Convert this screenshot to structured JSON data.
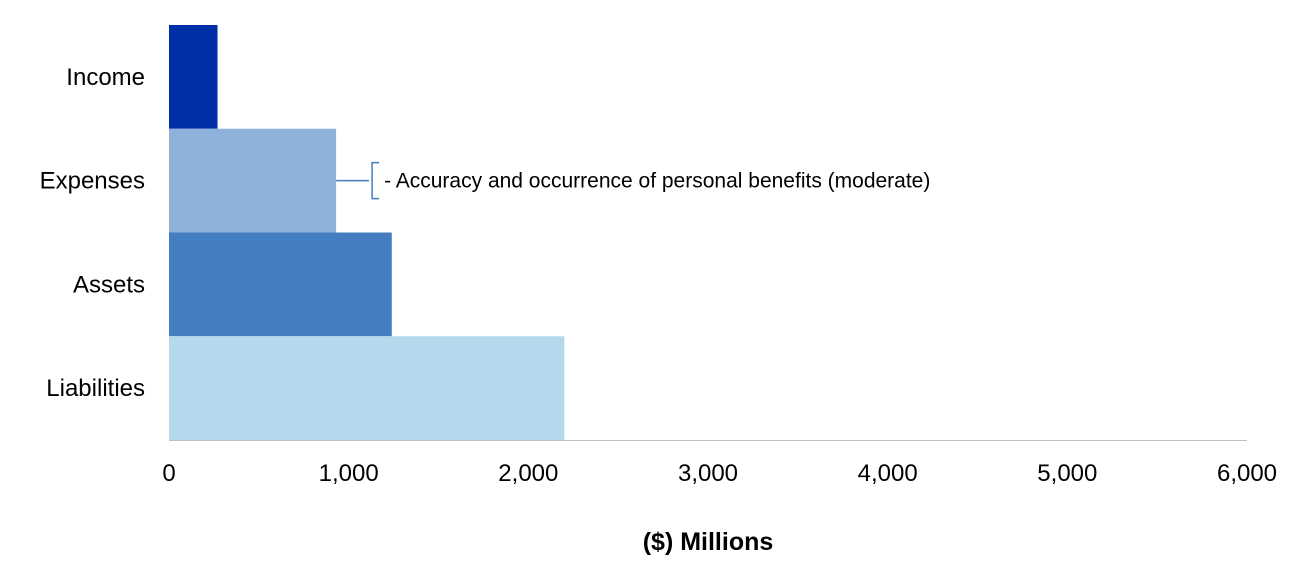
{
  "chart_data": {
    "type": "bar",
    "orientation": "horizontal",
    "categories": [
      "Income",
      "Expenses",
      "Assets",
      "Liabilities"
    ],
    "values": [
      270,
      930,
      1240,
      2200
    ],
    "colors": [
      "#002FA7",
      "#8FB2DA",
      "#457EC0",
      "#B5D9EC"
    ],
    "xlabel": "($) Millions",
    "xlim": [
      0,
      6000
    ],
    "xticks": [
      0,
      1000,
      2000,
      3000,
      4000,
      5000,
      6000
    ],
    "xtick_labels": [
      "0",
      "1,000",
      "2,000",
      "3,000",
      "4,000",
      "5,000",
      "6,000"
    ],
    "grid": false,
    "annotations": [
      {
        "category": "Expenses",
        "text": "- Accuracy and occurrence of personal benefits (moderate)"
      }
    ],
    "axis_color": "#BFBFBF",
    "bracket_color": "#457EC0"
  }
}
